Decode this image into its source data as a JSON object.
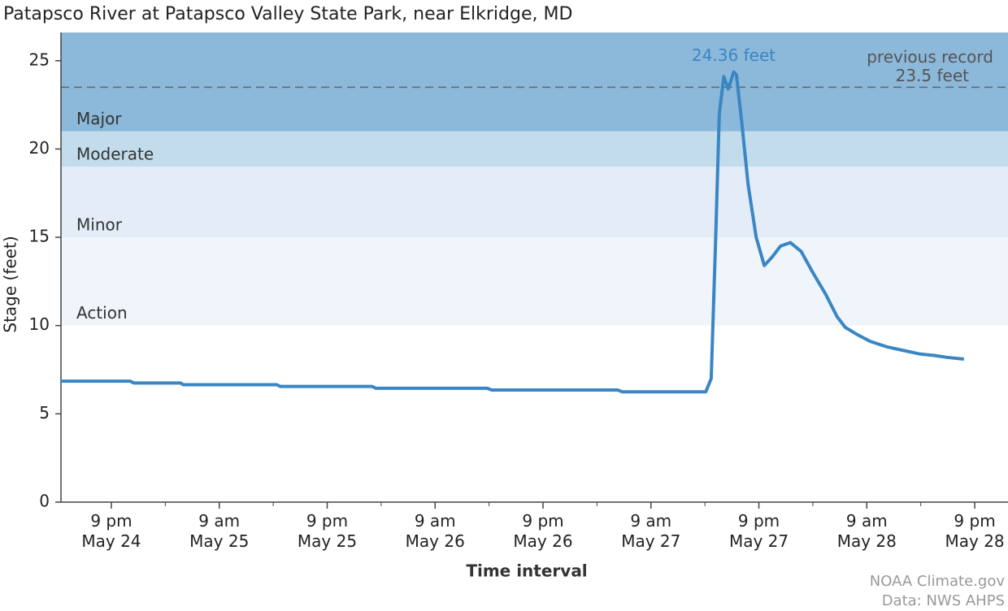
{
  "chart_data": {
    "type": "line",
    "title": "Patapsco River at Patapsco Valley State Park, near Elkridge, MD",
    "x_label": "Time interval",
    "y_label": "Stage (feet)",
    "color": "#3a86c4",
    "x": [
      -5.6,
      -4.7,
      2.1,
      2.5,
      7.7,
      8.0,
      18.4,
      18.8,
      29.0,
      29.4,
      41.8,
      42.3,
      56.3,
      56.8,
      66.1,
      66.7,
      67.2,
      67.6,
      68.1,
      68.6,
      69.2,
      69.5,
      70.1,
      70.8,
      71.7,
      72.6,
      73.5,
      74.4,
      75.5,
      76.7,
      78.0,
      79.4,
      80.7,
      81.6,
      82.9,
      84.4,
      86.2,
      88.0,
      89.8,
      91.6,
      92.9,
      94.8
    ],
    "values": [
      6.85,
      6.85,
      6.85,
      6.75,
      6.75,
      6.65,
      6.65,
      6.55,
      6.55,
      6.45,
      6.45,
      6.35,
      6.35,
      6.25,
      6.25,
      7.0,
      15.0,
      22.0,
      24.1,
      23.4,
      24.36,
      24.2,
      21.5,
      18.0,
      15.0,
      13.4,
      13.9,
      14.5,
      14.7,
      14.2,
      13.0,
      11.8,
      10.5,
      9.9,
      9.5,
      9.1,
      8.8,
      8.6,
      8.4,
      8.3,
      8.2,
      8.1
    ],
    "xlim": [
      -5.6,
      99.7
    ],
    "ylim": [
      0,
      26.6
    ],
    "yticks": [
      0,
      5,
      10,
      15,
      20,
      25
    ],
    "xticks": [
      {
        "value": 0,
        "label": "9 pm\nMay 24"
      },
      {
        "value": 12,
        "label": "9 am\nMay 25"
      },
      {
        "value": 24,
        "label": "9 pm\nMay 25"
      },
      {
        "value": 36,
        "label": "9 am\nMay 26"
      },
      {
        "value": 48,
        "label": "9 pm\nMay 26"
      },
      {
        "value": 60,
        "label": "9 am\nMay 27"
      },
      {
        "value": 72,
        "label": "9 pm\nMay 27"
      },
      {
        "value": 84,
        "label": "9 am\nMay 28"
      },
      {
        "value": 96,
        "label": "9 pm\nMay 28"
      }
    ],
    "xminorticks": [
      6,
      18,
      30,
      42,
      54,
      66,
      78,
      90
    ],
    "bands": [
      {
        "name": "Action",
        "from": 10,
        "to": 15,
        "color": "#f0f5fb"
      },
      {
        "name": "Minor",
        "from": 15,
        "to": 19,
        "color": "#e3ecf7"
      },
      {
        "name": "Moderate",
        "from": 19,
        "to": 21,
        "color": "#c3dcec"
      },
      {
        "name": "Major",
        "from": 21,
        "to": 26.6,
        "color": "#8cb8da"
      }
    ],
    "record": {
      "value": 23.5,
      "label": "previous record",
      "value_label": "23.5 feet"
    },
    "peak": {
      "x": 69.2,
      "value": 24.36,
      "label": "24.36 feet"
    },
    "credits": [
      "NOAA Climate.gov",
      "Data: NWS AHPS"
    ]
  }
}
